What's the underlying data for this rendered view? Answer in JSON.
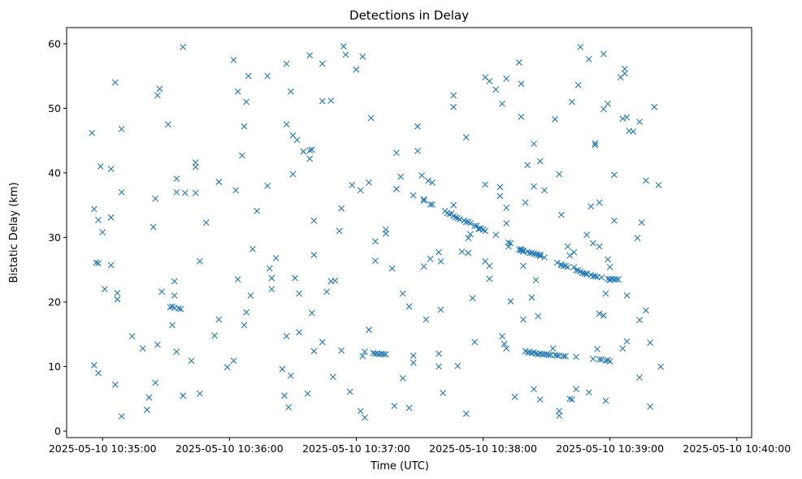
{
  "chart_data": {
    "type": "scatter",
    "title": "Detections in Delay",
    "xlabel": "Time (UTC)",
    "ylabel": "Bistatic Delay (km)",
    "marker": "x",
    "color": "#1f77b4",
    "x_units": "seconds after 2025-05-10 10:35:00",
    "xlim": [
      -17,
      307
    ],
    "ylim": [
      -1,
      62.5
    ],
    "x_tick_values": [
      0,
      60,
      120,
      180,
      240,
      300
    ],
    "x_tick_labels": [
      "2025-05-10 10:35:00",
      "2025-05-10 10:36:00",
      "2025-05-10 10:37:00",
      "2025-05-10 10:38:00",
      "2025-05-10 10:39:00",
      "2025-05-10 10:40:00"
    ],
    "y_tick_values": [
      0,
      10,
      20,
      30,
      40,
      50,
      60
    ],
    "y_tick_labels": [
      "0",
      "10",
      "20",
      "30",
      "40",
      "50",
      "60"
    ],
    "grid": false,
    "legend": "none",
    "points": [
      [
        -5,
        46.2
      ],
      [
        -4,
        34.4
      ],
      [
        -4,
        10.2
      ],
      [
        -3,
        26.1
      ],
      [
        -2,
        26
      ],
      [
        -2,
        9
      ],
      [
        -2,
        32.7
      ],
      [
        -1,
        41
      ],
      [
        0,
        30.8
      ],
      [
        1,
        22
      ],
      [
        4,
        40.6
      ],
      [
        4,
        33.1
      ],
      [
        4,
        25.7
      ],
      [
        6,
        7.2
      ],
      [
        6,
        54
      ],
      [
        7,
        21.4
      ],
      [
        7,
        20.4
      ],
      [
        9,
        2.3
      ],
      [
        9,
        37
      ],
      [
        9,
        46.8
      ],
      [
        14,
        14.7
      ],
      [
        19,
        12.8
      ],
      [
        21,
        3.3
      ],
      [
        22,
        5.2
      ],
      [
        24,
        31.6
      ],
      [
        25,
        36
      ],
      [
        25,
        7.5
      ],
      [
        26,
        13.4
      ],
      [
        26,
        52
      ],
      [
        27,
        53
      ],
      [
        28,
        21.6
      ],
      [
        31,
        47.5
      ],
      [
        32,
        19.2
      ],
      [
        33,
        16.4
      ],
      [
        33,
        19.3
      ],
      [
        34,
        23.2
      ],
      [
        34,
        21
      ],
      [
        34,
        19.1
      ],
      [
        35,
        39.1
      ],
      [
        35,
        12.3
      ],
      [
        35,
        37
      ],
      [
        36,
        19
      ],
      [
        37,
        18.9
      ],
      [
        38,
        5.5
      ],
      [
        38,
        59.5
      ],
      [
        39,
        36.9
      ],
      [
        42,
        10.9
      ],
      [
        44,
        40.9
      ],
      [
        44,
        41.6
      ],
      [
        44,
        36.9
      ],
      [
        46,
        5.8
      ],
      [
        46,
        26.3
      ],
      [
        49,
        32.3
      ],
      [
        53,
        14.8
      ],
      [
        55,
        17.3
      ],
      [
        55,
        38.6
      ],
      [
        59,
        9.9
      ],
      [
        62,
        10.9
      ],
      [
        62,
        57.5
      ],
      [
        63,
        37.3
      ],
      [
        64,
        52.6
      ],
      [
        64,
        23.5
      ],
      [
        66,
        42.7
      ],
      [
        67,
        47.2
      ],
      [
        67,
        16.4
      ],
      [
        68,
        51
      ],
      [
        68,
        18.4
      ],
      [
        69,
        55
      ],
      [
        70,
        21
      ],
      [
        71,
        28.2
      ],
      [
        73,
        34.1
      ],
      [
        78,
        38
      ],
      [
        78,
        55
      ],
      [
        79,
        25.2
      ],
      [
        80,
        23.7
      ],
      [
        80,
        22
      ],
      [
        82,
        26.8
      ],
      [
        85,
        9.6
      ],
      [
        86,
        5.5
      ],
      [
        87,
        56.9
      ],
      [
        87,
        47.5
      ],
      [
        87,
        14.7
      ],
      [
        88,
        3.7
      ],
      [
        89,
        8.6
      ],
      [
        89,
        52.6
      ],
      [
        90,
        39.8
      ],
      [
        90,
        45.8
      ],
      [
        91,
        23.7
      ],
      [
        92,
        45.1
      ],
      [
        93,
        21.3
      ],
      [
        93,
        15.3
      ],
      [
        95,
        43.3
      ],
      [
        97,
        5.8
      ],
      [
        98,
        58.2
      ],
      [
        98,
        42.2
      ],
      [
        98,
        43.5
      ],
      [
        99,
        43.6
      ],
      [
        99,
        18.3
      ],
      [
        100,
        12.4
      ],
      [
        100,
        27.3
      ],
      [
        100,
        32.6
      ],
      [
        104,
        13.8
      ],
      [
        104,
        51.1
      ],
      [
        104,
        56.9
      ],
      [
        106,
        21.6
      ],
      [
        108,
        23.2
      ],
      [
        108,
        51.2
      ],
      [
        109,
        8.4
      ],
      [
        110,
        23.3
      ],
      [
        112,
        31
      ],
      [
        113,
        12.5
      ],
      [
        113,
        34.5
      ],
      [
        114,
        59.6
      ],
      [
        115,
        58.3
      ],
      [
        117,
        6.1
      ],
      [
        118,
        38.1
      ],
      [
        120,
        56
      ],
      [
        122,
        37.3
      ],
      [
        122,
        3.1
      ],
      [
        123,
        11.6
      ],
      [
        123,
        58
      ],
      [
        124,
        2.1
      ],
      [
        124,
        12.3
      ],
      [
        126,
        15.7
      ],
      [
        126,
        38.5
      ],
      [
        127,
        48.5
      ],
      [
        128,
        12.1
      ],
      [
        129,
        29.4
      ],
      [
        129,
        26.4
      ],
      [
        129,
        12
      ],
      [
        130,
        12
      ],
      [
        131,
        11.9
      ],
      [
        132,
        12
      ],
      [
        133,
        11.9
      ],
      [
        134,
        11.9
      ],
      [
        134,
        31.2
      ],
      [
        134,
        30.6
      ],
      [
        137,
        25.2
      ],
      [
        138,
        3.9
      ],
      [
        139,
        37.5
      ],
      [
        139,
        43.1
      ],
      [
        141,
        39.4
      ],
      [
        142,
        8.2
      ],
      [
        142,
        21.3
      ],
      [
        145,
        19.3
      ],
      [
        145,
        3.6
      ],
      [
        147,
        36.5
      ],
      [
        147,
        10.6
      ],
      [
        147,
        11.7
      ],
      [
        149,
        47.2
      ],
      [
        149,
        43.4
      ],
      [
        151,
        39.6
      ],
      [
        152,
        35.7
      ],
      [
        152,
        25.5
      ],
      [
        152,
        35.9
      ],
      [
        153,
        17.3
      ],
      [
        154,
        38.8
      ],
      [
        155,
        35.1
      ],
      [
        155,
        26.7
      ],
      [
        156,
        38.5
      ],
      [
        156,
        35.1
      ],
      [
        159,
        10
      ],
      [
        159,
        12
      ],
      [
        159,
        27.7
      ],
      [
        160,
        26.3
      ],
      [
        160,
        18.8
      ],
      [
        161,
        5.9
      ],
      [
        162,
        34.1
      ],
      [
        163,
        33.8
      ],
      [
        164,
        33.6
      ],
      [
        165,
        33.7
      ],
      [
        166,
        52
      ],
      [
        166,
        50.2
      ],
      [
        166,
        33.3
      ],
      [
        166,
        35
      ],
      [
        167,
        33.1
      ],
      [
        168,
        33
      ],
      [
        168,
        10.1
      ],
      [
        169,
        32.8
      ],
      [
        170,
        27.8
      ],
      [
        171,
        32.6
      ],
      [
        172,
        32.4
      ],
      [
        172,
        2.7
      ],
      [
        172,
        45.5
      ],
      [
        173,
        32.4
      ],
      [
        173,
        27.6
      ],
      [
        173,
        29.9
      ],
      [
        174,
        32.2
      ],
      [
        174,
        30.5
      ],
      [
        175,
        20.6
      ],
      [
        176,
        31.8
      ],
      [
        176,
        13.8
      ],
      [
        177,
        31.8
      ],
      [
        178,
        31.3
      ],
      [
        178,
        31.4
      ],
      [
        179,
        31.4
      ],
      [
        180,
        31.2
      ],
      [
        181,
        31
      ],
      [
        181,
        54.8
      ],
      [
        181,
        38.2
      ],
      [
        181,
        26.3
      ],
      [
        183,
        25.6
      ],
      [
        183,
        23.6
      ],
      [
        183,
        54.2
      ],
      [
        186,
        30.4
      ],
      [
        186,
        52.9
      ],
      [
        188,
        37.8
      ],
      [
        188,
        36.4
      ],
      [
        189,
        50.7
      ],
      [
        189,
        14.7
      ],
      [
        190,
        13.5
      ],
      [
        191,
        54.6
      ],
      [
        191,
        34.6
      ],
      [
        191,
        32.2
      ],
      [
        191,
        12.8
      ],
      [
        192,
        29.2
      ],
      [
        192,
        28.6
      ],
      [
        193,
        29.1
      ],
      [
        193,
        20.1
      ],
      [
        195,
        5.3
      ],
      [
        197,
        28.1
      ],
      [
        197,
        57.1
      ],
      [
        198,
        28
      ],
      [
        198,
        53.8
      ],
      [
        198,
        28.2
      ],
      [
        198,
        48.7
      ],
      [
        199,
        28
      ],
      [
        199,
        25.6
      ],
      [
        199,
        17.3
      ],
      [
        199,
        27.8
      ],
      [
        200,
        12.4
      ],
      [
        200,
        35.4
      ],
      [
        201,
        27.8
      ],
      [
        201,
        12.2
      ],
      [
        201,
        41.2
      ],
      [
        202,
        12.2
      ],
      [
        202,
        27.6
      ],
      [
        203,
        27.6
      ],
      [
        203,
        12.1
      ],
      [
        203,
        20.7
      ],
      [
        204,
        27.5
      ],
      [
        204,
        12.2
      ],
      [
        204,
        37.9
      ],
      [
        204,
        44.5
      ],
      [
        204,
        6.5
      ],
      [
        205,
        27.4
      ],
      [
        205,
        12
      ],
      [
        205,
        23.4
      ],
      [
        206,
        27.3
      ],
      [
        206,
        11.9
      ],
      [
        206,
        17.8
      ],
      [
        207,
        27.3
      ],
      [
        207,
        27.1
      ],
      [
        207,
        12
      ],
      [
        207,
        41.8
      ],
      [
        207,
        4.9
      ],
      [
        208,
        11.9
      ],
      [
        209,
        11.9
      ],
      [
        209,
        26.9
      ],
      [
        209,
        37.3
      ],
      [
        210,
        11.9
      ],
      [
        211,
        11.8
      ],
      [
        212,
        11.8
      ],
      [
        213,
        12.8
      ],
      [
        214,
        11.8
      ],
      [
        214,
        48.3
      ],
      [
        215,
        11.7
      ],
      [
        215,
        26.1
      ],
      [
        216,
        11.7
      ],
      [
        216,
        39.8
      ],
      [
        216,
        2.4
      ],
      [
        216,
        3.1
      ],
      [
        217,
        33.5
      ],
      [
        217,
        25.7
      ],
      [
        217,
        25.8
      ],
      [
        218,
        11.6
      ],
      [
        218,
        25.6
      ],
      [
        218,
        11.6
      ],
      [
        219,
        25.6
      ],
      [
        219,
        11.6
      ],
      [
        220,
        25.4
      ],
      [
        220,
        28.6
      ],
      [
        221,
        5
      ],
      [
        221,
        27.2
      ],
      [
        222,
        4.9
      ],
      [
        222,
        51
      ],
      [
        223,
        25.4
      ],
      [
        223,
        27.7
      ],
      [
        224,
        11.5
      ],
      [
        224,
        6.5
      ],
      [
        224,
        24.9
      ],
      [
        225,
        53.6
      ],
      [
        225,
        24.9
      ],
      [
        226,
        59.5
      ],
      [
        226,
        24.7
      ],
      [
        227,
        24.5
      ],
      [
        227,
        24.5
      ],
      [
        228,
        24.4
      ],
      [
        229,
        24.4
      ],
      [
        229,
        30.4
      ],
      [
        229,
        24.3
      ],
      [
        230,
        57.6
      ],
      [
        230,
        6
      ],
      [
        231,
        24.2
      ],
      [
        231,
        34.8
      ],
      [
        232,
        24
      ],
      [
        232,
        29.1
      ],
      [
        232,
        11.2
      ],
      [
        233,
        44.6
      ],
      [
        233,
        44.3
      ],
      [
        233,
        24
      ],
      [
        234,
        12.7
      ],
      [
        234,
        23.9
      ],
      [
        235,
        18.2
      ],
      [
        235,
        11.1
      ],
      [
        235,
        28.6
      ],
      [
        235,
        35.4
      ],
      [
        236,
        23.8
      ],
      [
        236,
        11.1
      ],
      [
        237,
        17.9
      ],
      [
        237,
        49.9
      ],
      [
        237,
        58.4
      ],
      [
        238,
        10.9
      ],
      [
        238,
        4.7
      ],
      [
        238,
        21.3
      ],
      [
        239,
        50.7
      ],
      [
        239,
        26.6
      ],
      [
        239,
        23.6
      ],
      [
        239,
        11
      ],
      [
        240,
        10.8
      ],
      [
        240,
        23.4
      ],
      [
        240,
        23.5
      ],
      [
        240,
        25.4
      ],
      [
        241,
        23.6
      ],
      [
        242,
        39.7
      ],
      [
        242,
        32.6
      ],
      [
        242,
        23.5
      ],
      [
        243,
        23.5
      ],
      [
        244,
        23.5
      ],
      [
        245,
        54.8
      ],
      [
        246,
        48.4
      ],
      [
        246,
        12.8
      ],
      [
        247,
        55.4
      ],
      [
        247,
        56.1
      ],
      [
        248,
        48.6
      ],
      [
        248,
        13.9
      ],
      [
        248,
        21
      ],
      [
        249,
        46.5
      ],
      [
        251,
        46.4
      ],
      [
        253,
        29.9
      ],
      [
        254,
        47.9
      ],
      [
        254,
        17.2
      ],
      [
        254,
        8.3
      ],
      [
        255,
        32.3
      ],
      [
        257,
        38.8
      ],
      [
        257,
        18.7
      ],
      [
        259,
        3.8
      ],
      [
        259,
        13.7
      ],
      [
        261,
        50.2
      ],
      [
        263,
        38.1
      ],
      [
        264,
        10
      ]
    ]
  }
}
